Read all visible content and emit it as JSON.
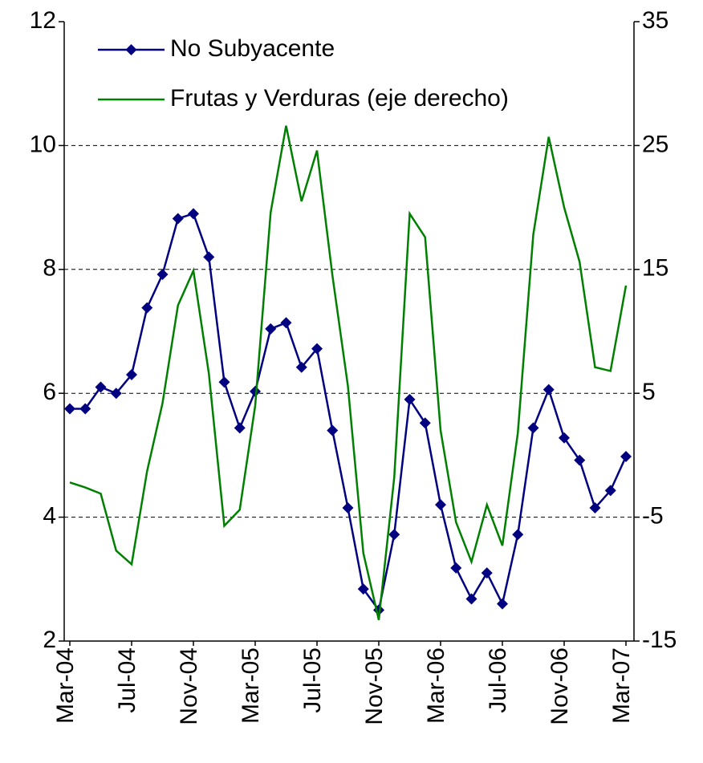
{
  "chart_data": {
    "type": "line",
    "categories": [
      "Mar-04",
      null,
      null,
      null,
      "Jul-04",
      null,
      null,
      null,
      "Nov-04",
      null,
      null,
      null,
      "Mar-05",
      null,
      null,
      null,
      "Jul-05",
      null,
      null,
      null,
      "Nov-05",
      null,
      null,
      null,
      "Mar-06",
      null,
      null,
      null,
      "Jul-06",
      null,
      null,
      null,
      "Nov-06",
      null,
      null,
      null,
      "Mar-07"
    ],
    "series": [
      {
        "name": "No Subyacente",
        "color": "#000080",
        "marker": "diamond",
        "values": [
          5.75,
          5.75,
          6.1,
          6.0,
          6.3,
          7.38,
          7.92,
          8.82,
          8.9,
          8.2,
          6.18,
          5.44,
          6.03,
          7.04,
          7.14,
          6.42,
          6.72,
          5.4,
          4.15,
          2.84,
          2.5,
          3.72,
          5.9,
          5.52,
          4.2,
          3.18,
          2.68,
          3.1,
          2.6,
          3.72,
          5.44,
          6.06,
          5.28,
          4.92,
          4.15,
          4.43,
          4.98
        ]
      },
      {
        "name": "Frutas y Verduras (eje derecho)",
        "color": "#008000",
        "axis": "y2",
        "values": [
          -2.2,
          -2.6,
          -3.1,
          -7.7,
          -8.8,
          -1.3,
          4.2,
          12.1,
          14.9,
          6.6,
          -5.7,
          -4.4,
          4.0,
          19.6,
          26.6,
          20.5,
          24.6,
          14.5,
          5.6,
          -7.9,
          -13.3,
          -1.8,
          19.5,
          17.6,
          2.0,
          -5.4,
          -8.6,
          -4.0,
          -7.3,
          1.8,
          17.8,
          25.7,
          20.0,
          15.6,
          7.1,
          6.8,
          13.7
        ]
      }
    ],
    "ylim": [
      2,
      12
    ],
    "yticks": [
      2,
      4,
      6,
      8,
      10,
      12
    ],
    "y2lim": [
      -15,
      35
    ],
    "y2ticks": [
      -15,
      -5,
      5,
      15,
      25,
      35
    ],
    "grid": true,
    "legend": "top-left"
  }
}
